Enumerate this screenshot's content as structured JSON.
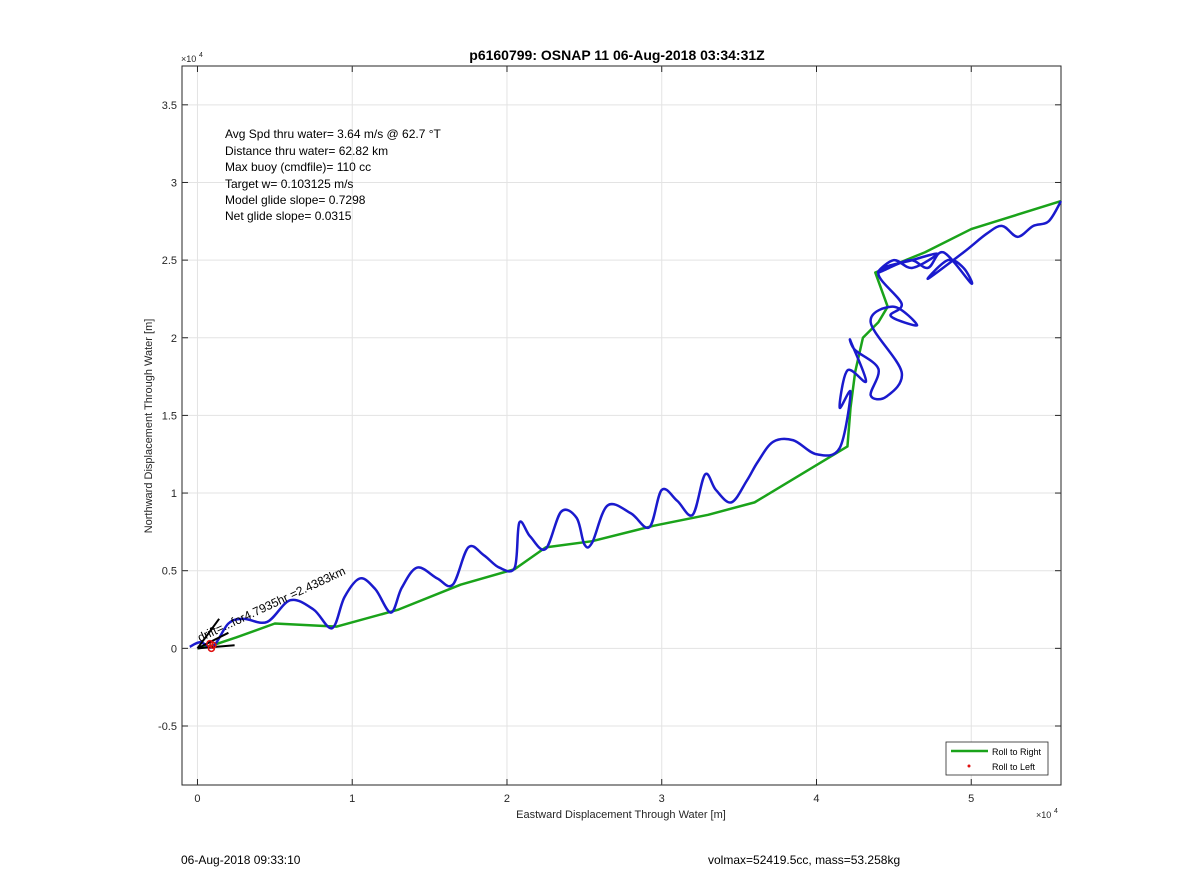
{
  "chart_data": {
    "type": "line",
    "title": "p6160799: OSNAP 11 06-Aug-2018 03:34:31Z",
    "xlabel": "Eastward Displacement Through Water [m]",
    "ylabel": "Northward Displacement Through Water [m]",
    "xlim": [
      -0.1,
      5.58
    ],
    "ylim": [
      -0.88,
      3.75
    ],
    "axis_scale_note": "×10⁴",
    "x_ticks": [
      "0",
      "1",
      "2",
      "3",
      "4",
      "5"
    ],
    "y_ticks": [
      "-0.5",
      "0",
      "0.5",
      "1",
      "1.5",
      "2",
      "2.5",
      "3",
      "3.5"
    ],
    "grid": true,
    "legend_position": "bottom-right",
    "stats": [
      "Avg Spd thru water=  3.64 m/s @  62.7 °T",
      "Distance thru water= 62.82 km",
      "Max buoy (cmdfile)= 110 cc",
      "Target w= 0.103125 m/s",
      "Model glide slope= 0.7298",
      "Net glide slope= 0.0315"
    ],
    "annotation": "drift=...for4.7935hr =2.4383km",
    "series": [
      {
        "name": "Roll to Right",
        "color": "#1aa31a",
        "x": [
          0,
          0.1,
          0.25,
          0.5,
          0.9,
          1.3,
          1.7,
          2.05,
          2.25,
          2.55,
          2.95,
          3.3,
          3.6,
          4.2,
          4.22,
          4.25,
          4.3,
          4.4,
          4.46,
          4.38,
          4.7,
          5.0,
          5.58
        ],
        "y": [
          0,
          0.02,
          0.07,
          0.16,
          0.14,
          0.25,
          0.41,
          0.51,
          0.65,
          0.69,
          0.79,
          0.86,
          0.94,
          1.3,
          1.55,
          1.78,
          2.0,
          2.1,
          2.2,
          2.42,
          2.55,
          2.7,
          2.88
        ]
      },
      {
        "name": "Roll to Left",
        "color": "#e01010",
        "x": [
          0.08,
          0.09,
          0.1
        ],
        "y": [
          0.03,
          0.0,
          0.02
        ]
      },
      {
        "color": "#1a1acd",
        "x": [
          -0.05,
          0.02,
          0.1,
          0.2,
          0.3,
          0.45,
          0.6,
          0.75,
          0.87,
          0.95,
          1.05,
          1.15,
          1.25,
          1.32,
          1.42,
          1.55,
          1.65,
          1.75,
          1.85,
          1.95,
          2.05,
          2.08,
          2.15,
          2.25,
          2.35,
          2.45,
          2.5,
          2.55,
          2.65,
          2.8,
          2.92,
          3.0,
          3.1,
          3.2,
          3.28,
          3.35,
          3.45,
          3.55,
          3.62,
          3.72,
          3.85,
          4.0,
          4.15,
          4.22,
          4.15,
          4.2,
          4.32,
          4.22,
          4.25,
          4.4,
          4.35,
          4.45,
          4.55,
          4.35,
          4.5,
          4.65,
          4.48,
          4.55,
          4.4,
          4.62,
          4.78,
          4.62,
          4.5,
          4.4,
          4.6,
          4.72,
          4.82,
          5.0,
          4.95,
          4.85,
          4.72,
          4.95,
          5.1,
          5.2,
          5.3,
          5.4,
          5.5,
          5.58
        ],
        "y": [
          0.01,
          0.04,
          0.01,
          0.16,
          0.19,
          0.17,
          0.31,
          0.25,
          0.13,
          0.33,
          0.45,
          0.38,
          0.23,
          0.39,
          0.52,
          0.45,
          0.41,
          0.65,
          0.6,
          0.52,
          0.52,
          0.81,
          0.72,
          0.64,
          0.88,
          0.84,
          0.67,
          0.68,
          0.92,
          0.87,
          0.78,
          1.02,
          0.95,
          0.86,
          1.12,
          1.02,
          0.94,
          1.08,
          1.2,
          1.33,
          1.34,
          1.25,
          1.29,
          1.65,
          1.55,
          1.79,
          1.72,
          1.98,
          1.92,
          1.8,
          1.63,
          1.62,
          1.78,
          2.1,
          2.2,
          2.08,
          2.14,
          2.22,
          2.42,
          2.5,
          2.54,
          2.45,
          2.5,
          2.42,
          2.5,
          2.45,
          2.55,
          2.35,
          2.45,
          2.5,
          2.38,
          2.55,
          2.67,
          2.72,
          2.65,
          2.72,
          2.75,
          2.88
        ]
      },
      {
        "color": "#000000",
        "x": [
          0,
          0.14,
          0,
          0.24,
          0,
          0.2
        ],
        "y": [
          0,
          0.19,
          0,
          0.02,
          0,
          0.1
        ]
      }
    ]
  },
  "footer": {
    "left": "06-Aug-2018 09:33:10",
    "right": "volmax=52419.5cc, mass=53.258kg"
  }
}
